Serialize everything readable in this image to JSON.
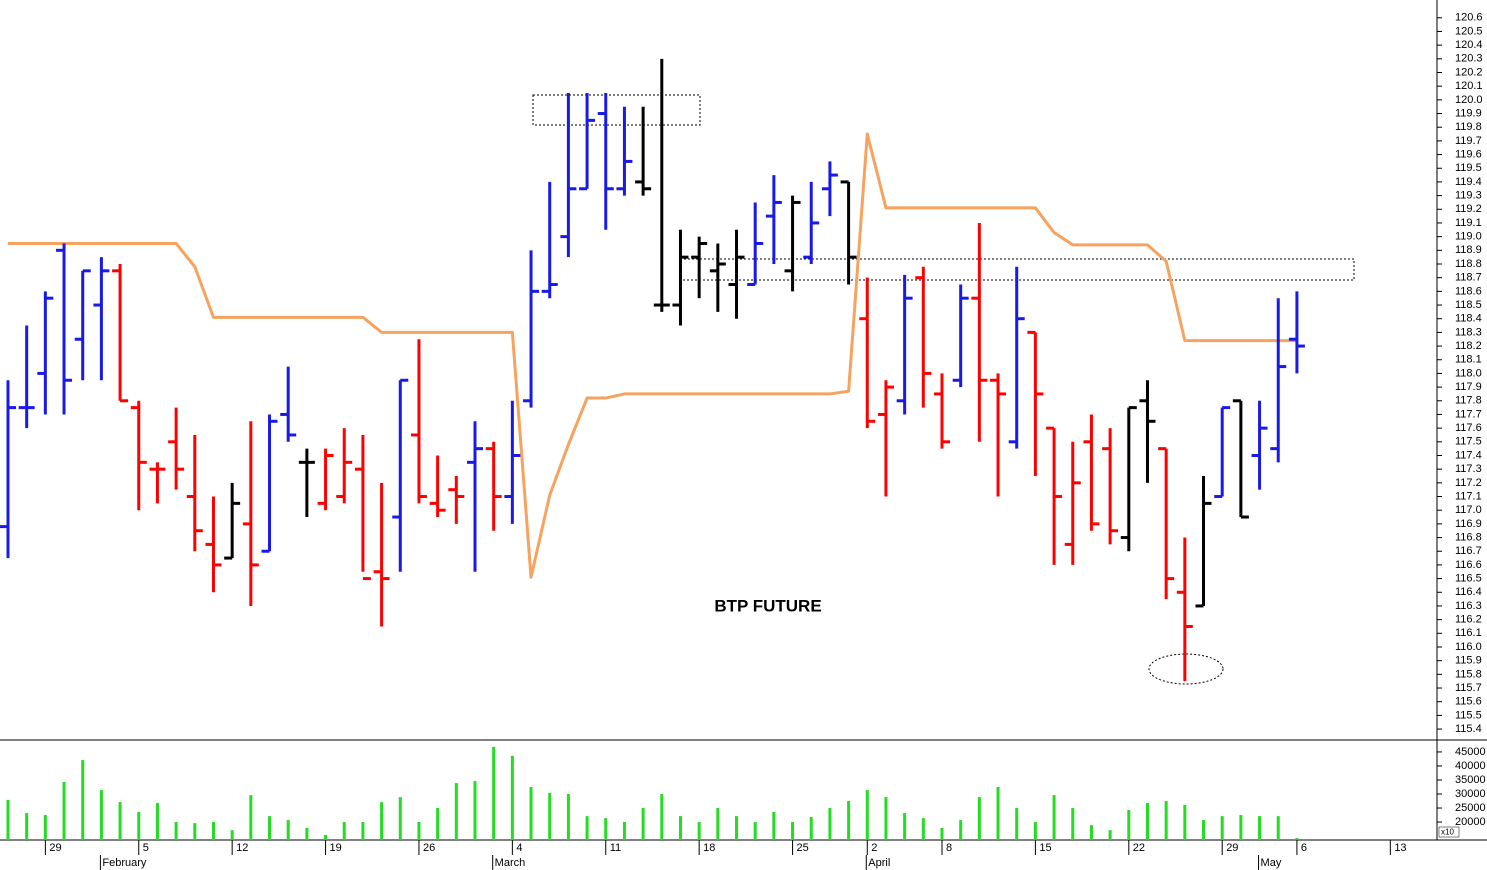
{
  "chart_data": [
    {
      "type": "ohlc",
      "annotation": "BTP FUTURE",
      "categories": [
        null,
        null,
        "29",
        null,
        null,
        null,
        null,
        "5",
        null,
        null,
        null,
        null,
        "12",
        null,
        null,
        null,
        null,
        "19",
        null,
        null,
        null,
        null,
        "26",
        null,
        null,
        null,
        null,
        "4",
        null,
        null,
        null,
        null,
        "11",
        null,
        null,
        null,
        null,
        "18",
        null,
        null,
        null,
        null,
        "25",
        null,
        null,
        null,
        "2",
        null,
        null,
        null,
        "8",
        null,
        null,
        null,
        null,
        "15",
        null,
        null,
        null,
        null,
        "22",
        null,
        null,
        null,
        null,
        "29",
        null,
        null,
        null,
        "6",
        null,
        null,
        null,
        null,
        "13",
        null,
        null
      ],
      "months": [
        null,
        null,
        null,
        null,
        null,
        "February",
        null,
        null,
        null,
        null,
        null,
        null,
        null,
        null,
        null,
        null,
        null,
        null,
        null,
        null,
        null,
        null,
        null,
        null,
        null,
        null,
        "March",
        null,
        null,
        null,
        null,
        null,
        null,
        null,
        null,
        null,
        null,
        null,
        null,
        null,
        null,
        null,
        null,
        null,
        null,
        null,
        "April",
        null,
        null,
        null,
        null,
        null,
        null,
        null,
        null,
        null,
        null,
        null,
        null,
        null,
        null,
        null,
        null,
        null,
        null,
        null,
        null,
        "May",
        null,
        null,
        null,
        null,
        null,
        null,
        null,
        null,
        null
      ],
      "high": [
        117.95,
        118.35,
        118.6,
        118.95,
        118.75,
        118.85,
        118.8,
        117.8,
        117.35,
        117.75,
        117.55,
        117.1,
        117.2,
        117.65,
        117.7,
        118.05,
        117.45,
        117.45,
        117.6,
        117.55,
        117.2,
        117.95,
        118.25,
        117.4,
        117.25,
        117.65,
        117.5,
        117.8,
        118.9,
        119.4,
        120.05,
        120.05,
        120.05,
        119.95,
        119.95,
        120.3,
        119.05,
        119.0,
        118.95,
        119.05,
        119.25,
        119.45,
        119.3,
        119.4,
        119.55,
        119.4,
        118.7,
        117.95,
        118.72,
        118.78,
        118.0,
        118.65,
        119.1,
        118.0,
        118.78,
        118.3,
        117.6,
        117.5,
        117.7,
        117.6,
        117.75,
        117.95,
        117.45,
        116.8,
        117.25,
        117.75,
        117.8,
        117.8,
        118.55,
        118.6,
        null,
        null,
        null,
        null,
        null,
        null,
        null
      ],
      "low": [
        116.65,
        117.6,
        117.7,
        117.7,
        117.95,
        117.95,
        117.8,
        117.0,
        117.05,
        117.15,
        116.7,
        116.4,
        116.65,
        116.3,
        116.7,
        117.5,
        116.95,
        117.0,
        117.05,
        116.55,
        116.15,
        116.55,
        117.05,
        116.95,
        116.9,
        116.55,
        116.85,
        116.9,
        117.75,
        118.55,
        118.85,
        119.35,
        119.05,
        119.3,
        119.3,
        118.45,
        118.35,
        118.55,
        118.45,
        118.4,
        118.65,
        118.8,
        118.6,
        118.8,
        119.15,
        118.65,
        117.6,
        117.1,
        117.7,
        117.75,
        117.45,
        117.9,
        117.5,
        117.1,
        117.45,
        117.25,
        116.6,
        116.6,
        116.85,
        116.75,
        116.7,
        117.2,
        116.35,
        115.75,
        116.3,
        117.1,
        116.95,
        117.15,
        117.35,
        118.0,
        null,
        null,
        null,
        null,
        null,
        null,
        null
      ],
      "open": [
        116.88,
        117.75,
        118.0,
        118.9,
        118.25,
        118.5,
        118.75,
        117.75,
        117.3,
        117.5,
        117.1,
        116.75,
        116.65,
        116.9,
        116.7,
        117.7,
        117.35,
        117.05,
        117.1,
        117.3,
        116.55,
        116.95,
        117.55,
        117.05,
        117.15,
        117.35,
        117.45,
        117.1,
        117.8,
        118.6,
        119.0,
        119.35,
        119.9,
        119.35,
        119.4,
        118.5,
        118.5,
        118.85,
        118.75,
        118.65,
        118.65,
        119.15,
        118.75,
        118.85,
        119.35,
        119.4,
        118.4,
        117.7,
        117.8,
        118.7,
        117.85,
        117.95,
        118.55,
        117.95,
        117.5,
        118.3,
        117.6,
        116.75,
        117.5,
        117.45,
        116.8,
        117.8,
        117.45,
        116.4,
        116.3,
        117.1,
        117.8,
        117.4,
        117.45,
        118.25,
        null,
        null,
        null,
        null,
        null,
        null,
        null
      ],
      "close": [
        117.75,
        117.75,
        118.55,
        117.95,
        118.75,
        118.75,
        117.8,
        117.35,
        117.3,
        117.3,
        116.85,
        116.6,
        117.05,
        116.6,
        117.65,
        117.55,
        117.35,
        117.4,
        117.35,
        116.5,
        116.5,
        117.95,
        117.1,
        117.0,
        117.1,
        117.45,
        117.1,
        117.4,
        118.6,
        118.65,
        119.35,
        119.85,
        119.35,
        119.55,
        119.35,
        118.5,
        118.85,
        118.95,
        118.8,
        118.85,
        118.95,
        119.25,
        119.25,
        119.1,
        119.45,
        118.85,
        117.65,
        117.9,
        118.55,
        118.0,
        117.5,
        118.55,
        117.95,
        117.85,
        118.4,
        117.85,
        117.1,
        117.2,
        116.9,
        116.85,
        117.75,
        117.65,
        116.5,
        116.15,
        117.05,
        117.75,
        116.95,
        117.6,
        118.05,
        118.2,
        null,
        null,
        null,
        null,
        null,
        null,
        null
      ],
      "colors": [
        "#1a1ae6",
        "#1a1ae6",
        "#1a1ae6",
        "#1a1ae6",
        "#1a1ae6",
        "#1a1ae6",
        "#ff0000",
        "#ff0000",
        "#ff0000",
        "#ff0000",
        "#ff0000",
        "#ff0000",
        "#000000",
        "#ff0000",
        "#1a1ae6",
        "#1a1ae6",
        "#000000",
        "#ff0000",
        "#ff0000",
        "#ff0000",
        "#ff0000",
        "#1a1ae6",
        "#ff0000",
        "#ff0000",
        "#ff0000",
        "#1a1ae6",
        "#ff0000",
        "#1a1ae6",
        "#1a1ae6",
        "#1a1ae6",
        "#1a1ae6",
        "#1a1ae6",
        "#1a1ae6",
        "#1a1ae6",
        "#000000",
        "#000000",
        "#000000",
        "#000000",
        "#000000",
        "#000000",
        "#1a1ae6",
        "#1a1ae6",
        "#000000",
        "#1a1ae6",
        "#1a1ae6",
        "#000000",
        "#ff0000",
        "#ff0000",
        "#1a1ae6",
        "#ff0000",
        "#ff0000",
        "#1a1ae6",
        "#ff0000",
        "#ff0000",
        "#1a1ae6",
        "#ff0000",
        "#ff0000",
        "#ff0000",
        "#ff0000",
        "#ff0000",
        "#000000",
        "#000000",
        "#ff0000",
        "#ff0000",
        "#000000",
        "#1a1ae6",
        "#000000",
        "#1a1ae6",
        "#1a1ae6",
        "#1a1ae6",
        null,
        null,
        null,
        null,
        null,
        null,
        null
      ],
      "overlay": {
        "color": "#f7a25e",
        "values": [
          118.95,
          118.95,
          118.95,
          118.95,
          118.95,
          118.95,
          118.95,
          118.95,
          118.95,
          118.95,
          118.78,
          118.41,
          118.41,
          118.41,
          118.41,
          118.41,
          118.41,
          118.41,
          118.41,
          118.41,
          118.3,
          118.3,
          118.3,
          118.3,
          118.3,
          118.3,
          118.3,
          118.3,
          116.51,
          117.11,
          117.48,
          117.82,
          117.82,
          117.85,
          117.85,
          117.85,
          117.85,
          117.85,
          117.85,
          117.85,
          117.85,
          117.85,
          117.85,
          117.85,
          117.85,
          117.87,
          119.75,
          119.21,
          119.21,
          119.21,
          119.21,
          119.21,
          119.21,
          119.21,
          119.21,
          119.21,
          119.03,
          118.94,
          118.94,
          118.94,
          118.94,
          118.94,
          118.82,
          118.24,
          118.24,
          118.24,
          118.24,
          118.24,
          118.24,
          118.24,
          null,
          null,
          null,
          null,
          null,
          null,
          null
        ]
      },
      "ylim": [
        115.32,
        120.73
      ],
      "yticks": [
        115.4,
        115.5,
        115.6,
        115.7,
        115.8,
        115.9,
        {
          "value": 116,
          "label": "116.0"
        },
        116.1,
        116.2,
        116.3,
        116.4,
        116.5,
        116.6,
        116.7,
        116.8,
        116.9,
        {
          "value": 117,
          "label": "117.0"
        },
        117.1,
        117.2,
        117.3,
        117.4,
        117.5,
        117.6,
        117.7,
        117.8,
        117.9,
        {
          "value": 118,
          "label": "118.0"
        },
        118.1,
        118.2,
        118.3,
        118.4,
        118.5,
        118.6,
        118.7,
        118.8,
        118.9,
        {
          "value": 119,
          "label": "119.0"
        },
        119.1,
        119.2,
        119.3,
        119.4,
        119.5,
        119.6,
        119.7,
        119.8,
        119.9,
        {
          "value": 120,
          "label": "120.0"
        },
        120.1,
        120.2,
        120.3,
        120.4,
        120.5,
        120.6
      ]
    },
    {
      "type": "bar",
      "color": "#22dd22",
      "unit": "x10",
      "values": [
        27900,
        23200,
        22500,
        34300,
        42100,
        31400,
        27100,
        23600,
        26800,
        20000,
        19600,
        20000,
        17100,
        29600,
        22100,
        20700,
        17900,
        15400,
        20000,
        20000,
        27100,
        28900,
        20000,
        25000,
        33900,
        34600,
        46800,
        43600,
        32500,
        30400,
        30000,
        22100,
        21400,
        20000,
        25000,
        30000,
        22100,
        20000,
        25000,
        22100,
        20000,
        23600,
        20000,
        21800,
        25000,
        27500,
        31400,
        28900,
        23200,
        21400,
        17900,
        20700,
        28900,
        32500,
        25000,
        20000,
        29600,
        25000,
        18900,
        17100,
        24300,
        26800,
        27500,
        26100,
        20700,
        22100,
        22500,
        22100,
        22100,
        14300,
        null,
        null,
        null,
        null,
        null,
        null,
        null
      ],
      "ylim": [
        13600,
        48900
      ],
      "yticks": [
        20000,
        25000,
        30000,
        35000,
        40000,
        45000
      ]
    }
  ]
}
